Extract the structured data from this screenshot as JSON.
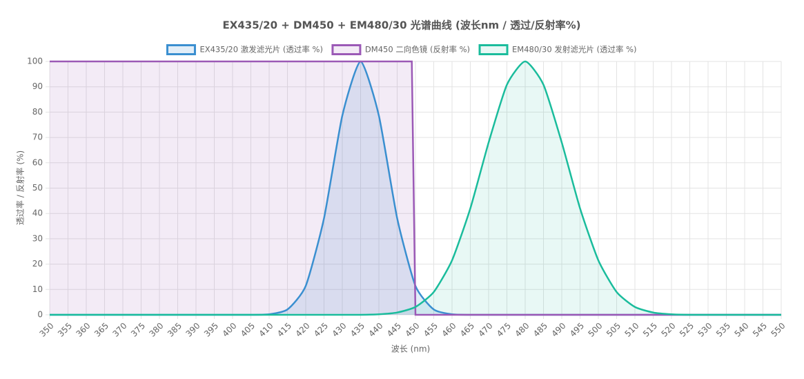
{
  "chart_data": {
    "type": "line",
    "title": "EX435/20 + DM450 + EM480/30 光谱曲线 (波长nm / 透过/反射率%)",
    "x_label": "波长 (nm)",
    "y_label": "透过率 / 反射率 (%)",
    "x": [
      350,
      355,
      360,
      365,
      370,
      375,
      380,
      385,
      390,
      395,
      400,
      405,
      410,
      415,
      420,
      425,
      430,
      435,
      440,
      445,
      450,
      455,
      460,
      465,
      470,
      475,
      480,
      485,
      490,
      495,
      500,
      505,
      510,
      515,
      520,
      525,
      530,
      535,
      540,
      545,
      550
    ],
    "series": [
      {
        "name": "EX435/20 激发滤光片 (透过率 %)",
        "color": "#3a8fd0",
        "fill": "rgba(58,143,208,0.15)",
        "values": [
          0,
          0,
          0,
          0,
          0,
          0,
          0,
          0,
          0,
          0,
          0,
          0,
          0.2,
          2.1,
          11.4,
          38.1,
          78.6,
          100,
          78.6,
          38.1,
          11.4,
          2.1,
          0.2,
          0,
          0,
          0,
          0,
          0,
          0,
          0,
          0,
          0,
          0,
          0,
          0,
          0,
          0,
          0,
          0,
          0,
          0
        ]
      },
      {
        "name": "DM450 二向色镜 (反射率 %)",
        "color": "#9b59b6",
        "fill": "rgba(155,89,182,0.12)",
        "x": [
          350,
          449,
          450,
          550
        ],
        "values": [
          100,
          100,
          0,
          0
        ]
      },
      {
        "name": "EM480/30 发射滤光片 (透过率 %)",
        "color": "#1abc9c",
        "fill": "rgba(26,188,156,0.1)",
        "values": [
          0,
          0,
          0,
          0,
          0,
          0,
          0,
          0,
          0,
          0,
          0,
          0,
          0,
          0,
          0,
          0,
          0,
          0,
          0.2,
          0.9,
          3.1,
          9,
          21.5,
          42,
          68,
          90.8,
          100,
          90.8,
          68,
          42,
          21.5,
          9,
          3.1,
          0.9,
          0.2,
          0,
          0,
          0,
          0,
          0,
          0
        ]
      }
    ],
    "xlim": [
      350,
      550
    ],
    "xticks": [
      350,
      355,
      360,
      365,
      370,
      375,
      380,
      385,
      390,
      395,
      400,
      405,
      410,
      415,
      420,
      425,
      430,
      435,
      440,
      445,
      450,
      455,
      460,
      465,
      470,
      475,
      480,
      485,
      490,
      495,
      500,
      505,
      510,
      515,
      520,
      525,
      530,
      535,
      540,
      545,
      550
    ],
    "ylim": [
      0,
      100
    ],
    "yticks": [
      0,
      10,
      20,
      30,
      40,
      50,
      60,
      70,
      80,
      90,
      100
    ],
    "grid": true
  }
}
